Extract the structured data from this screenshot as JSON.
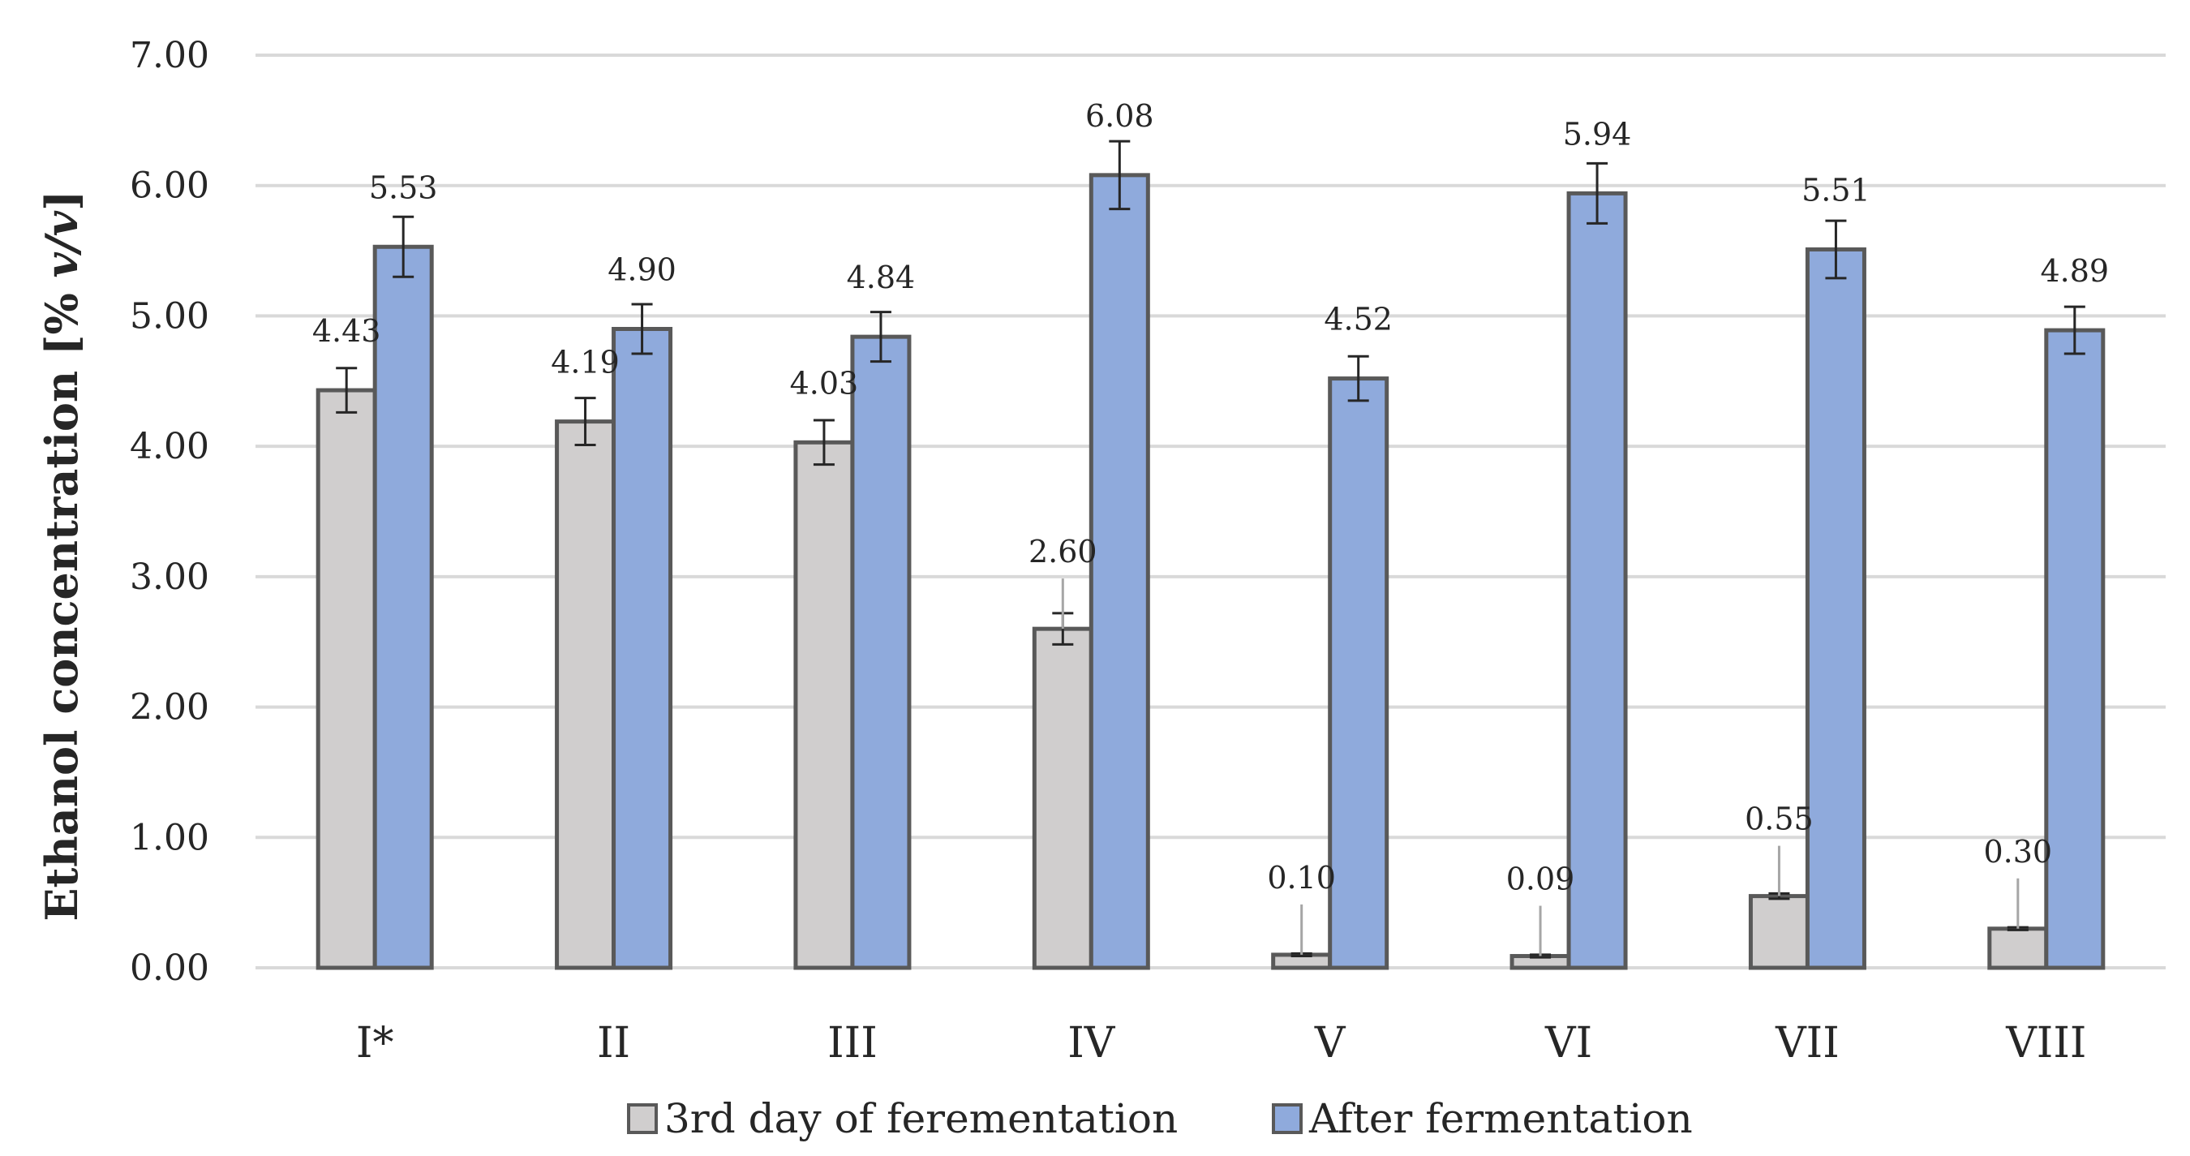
{
  "chart_data": {
    "type": "bar",
    "title": "",
    "xlabel": "",
    "ylabel": "Ethanol concentration [% v/v]",
    "ylabel_parts": {
      "prefix": "Ethanol concentration [% ",
      "italic": "v/v",
      "suffix": "]"
    },
    "ylim": [
      0,
      7
    ],
    "yticks": [
      0,
      1,
      2,
      3,
      4,
      5,
      6,
      7
    ],
    "ytick_labels": [
      "0.00",
      "1.00",
      "2.00",
      "3.00",
      "4.00",
      "5.00",
      "6.00",
      "7.00"
    ],
    "grid": true,
    "legend_position": "bottom",
    "categories": [
      "I*",
      "II",
      "III",
      "IV",
      "V",
      "VI",
      "VII",
      "VIII"
    ],
    "series": [
      {
        "name": "3rd day of ferementation",
        "color": "#d0cece",
        "values": [
          4.43,
          4.19,
          4.03,
          2.6,
          0.1,
          0.09,
          0.55,
          0.3
        ],
        "labels": [
          "4.43",
          "4.19",
          "4.03",
          "2.60",
          "0.10",
          "0.09",
          "0.55",
          "0.30"
        ],
        "errors": [
          0.17,
          0.18,
          0.17,
          0.12,
          0.01,
          0.01,
          0.02,
          0.01
        ]
      },
      {
        "name": "After fermentation",
        "color": "#8faadc",
        "values": [
          5.53,
          4.9,
          4.84,
          6.08,
          4.52,
          5.94,
          5.51,
          4.89
        ],
        "labels": [
          "5.53",
          "4.90",
          "4.84",
          "6.08",
          "4.52",
          "5.94",
          "5.51",
          "4.89"
        ],
        "errors": [
          0.23,
          0.19,
          0.19,
          0.26,
          0.17,
          0.23,
          0.22,
          0.18
        ]
      }
    ]
  }
}
